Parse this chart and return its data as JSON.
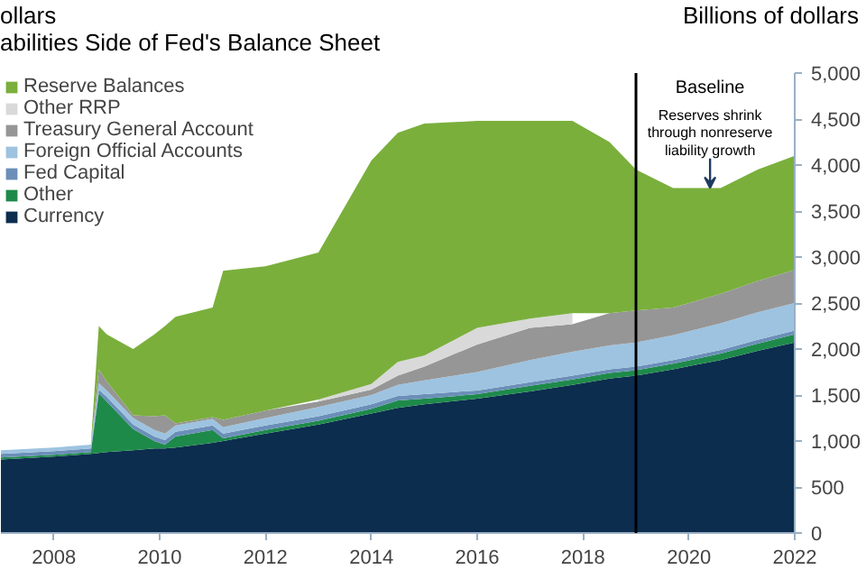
{
  "chart_data": {
    "type": "area",
    "stacked": true,
    "title": "abilities Side of Fed's Balance Sheet",
    "ylabel": "Billions of dollars",
    "annotations": [
      "ollars",
      "Baseline",
      {
        "text": "Reserves shrink\nthrough nonreserve\nliability growth",
        "x": 2020.4,
        "y": 3750
      }
    ],
    "x": [
      2007,
      2008,
      2008.7,
      2008.85,
      2009,
      2009.5,
      2009.9,
      2010.1,
      2010.3,
      2011,
      2011.2,
      2012,
      2013,
      2014,
      2014.5,
      2015,
      2016,
      2017,
      2017.8,
      2018.5,
      2019,
      2019.7,
      2020.6,
      2021.3,
      2022
    ],
    "series": [
      {
        "name": "Currency",
        "color": "#0c2d4e",
        "values": [
          800,
          830,
          860,
          870,
          880,
          900,
          920,
          920,
          930,
          980,
          1000,
          1080,
          1180,
          1300,
          1360,
          1400,
          1460,
          1540,
          1610,
          1680,
          1710,
          1780,
          1880,
          1980,
          2070
        ]
      },
      {
        "name": "Other",
        "color": "#1e8a4a",
        "values": [
          20,
          20,
          20,
          650,
          550,
          230,
          80,
          40,
          120,
          140,
          30,
          40,
          40,
          50,
          80,
          60,
          50,
          60,
          60,
          60,
          60,
          60,
          70,
          80,
          90
        ]
      },
      {
        "name": "Fed Capital",
        "color": "#6b8fb8",
        "values": [
          40,
          40,
          40,
          40,
          50,
          50,
          50,
          50,
          50,
          50,
          50,
          50,
          50,
          50,
          50,
          50,
          40,
          40,
          40,
          40,
          40,
          40,
          40,
          40,
          40
        ]
      },
      {
        "name": "Foreign Official Accounts",
        "color": "#9dc3e0",
        "values": [
          40,
          40,
          40,
          70,
          70,
          70,
          70,
          70,
          70,
          70,
          70,
          80,
          100,
          100,
          120,
          150,
          200,
          240,
          260,
          260,
          260,
          270,
          290,
          300,
          300
        ]
      },
      {
        "name": "Treasury General Account",
        "color": "#969696",
        "values": [
          0,
          0,
          0,
          150,
          100,
          30,
          150,
          200,
          20,
          20,
          80,
          80,
          60,
          60,
          100,
          150,
          300,
          350,
          300,
          350,
          350,
          300,
          320,
          340,
          360
        ]
      },
      {
        "name": "Other RRP",
        "color": "#d9d9d9",
        "values": [
          null,
          null,
          null,
          null,
          null,
          null,
          null,
          null,
          null,
          null,
          null,
          null,
          20,
          60,
          150,
          120,
          180,
          100,
          120,
          null,
          null,
          null,
          null,
          null,
          null
        ]
      },
      {
        "name": "Reserve Balances",
        "color": "#7aaf3c",
        "values": [
          0,
          0,
          0,
          470,
          510,
          720,
          890,
          970,
          1160,
          1190,
          1620,
          1570,
          1600,
          2430,
          2490,
          2520,
          2250,
          2150,
          2090,
          1860,
          1530,
          1300,
          1150,
          1210,
          1240
        ]
      }
    ],
    "ref_lines": [
      {
        "axis": "x",
        "value": 2019,
        "color": "#000000"
      }
    ],
    "xlim": [
      2007.0,
      2022.0
    ],
    "xticks": [
      2008,
      2010,
      2012,
      2014,
      2016,
      2018,
      2020,
      2022
    ],
    "ylim": [
      0,
      5000
    ],
    "yticks": [
      0,
      500,
      {
        "value": 1000,
        "label": "1,000"
      },
      {
        "value": 1500,
        "label": "1,500"
      },
      {
        "value": 2000,
        "label": "2,000"
      },
      {
        "value": 2500,
        "label": "2,500"
      },
      {
        "value": 3000,
        "label": "3,000"
      },
      {
        "value": 3500,
        "label": "3,500"
      },
      {
        "value": 4000,
        "label": "4,000"
      },
      {
        "value": 4500,
        "label": "4,500"
      },
      {
        "value": 5000,
        "label": "5,000"
      }
    ],
    "legend": "top left",
    "grid": false
  }
}
